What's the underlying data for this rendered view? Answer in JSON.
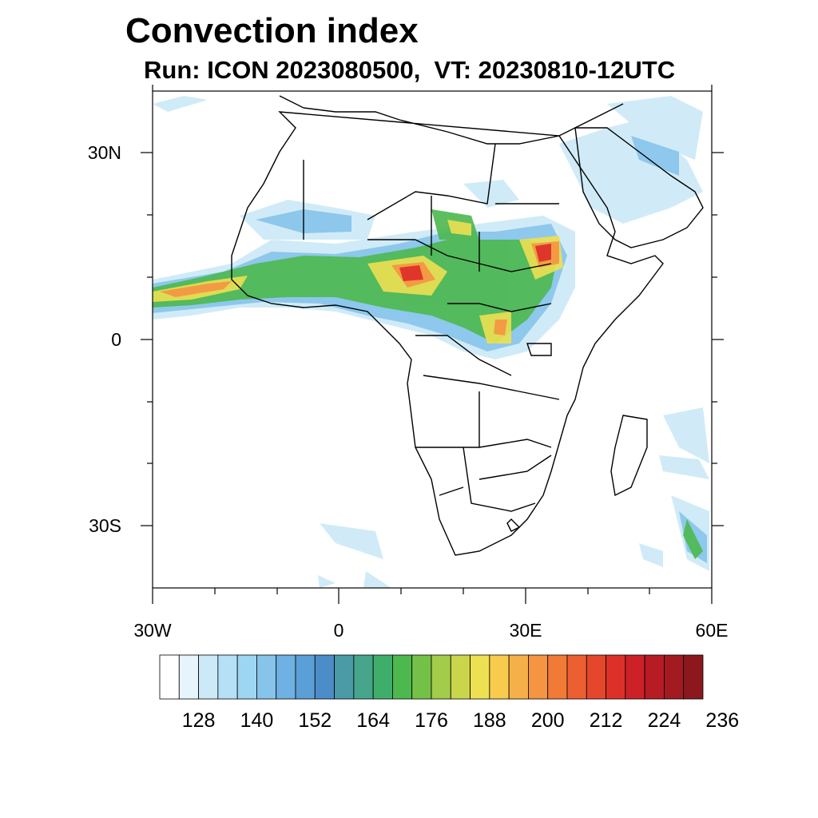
{
  "title": "Convection index",
  "subtitle": "Run: ICON 2023080500,  VT: 20230810-12UTC",
  "axes": {
    "lat_ticks": [
      "30N",
      "0",
      "30S"
    ],
    "lon_ticks": [
      "30W",
      "0",
      "30E",
      "60E"
    ],
    "lon_range": [
      -30,
      60
    ],
    "lat_range": [
      -40,
      40
    ]
  },
  "colorbar": {
    "labels": [
      "128",
      "140",
      "152",
      "164",
      "176",
      "188",
      "200",
      "212",
      "224",
      "236"
    ],
    "colors": [
      "#ffffff",
      "#e6f4fb",
      "#cbe9f7",
      "#b5e0f5",
      "#9dd6f3",
      "#86c4ea",
      "#6eb1e2",
      "#5a9fd6",
      "#4c8cc8",
      "#4a9ba6",
      "#46a58a",
      "#3fae6a",
      "#4cb84e",
      "#74c148",
      "#a2cc4a",
      "#cbd54c",
      "#ede052",
      "#f8cb4e",
      "#f6b04a",
      "#f59441",
      "#f27a37",
      "#ec5f30",
      "#e4472b",
      "#dc3029",
      "#cb2127",
      "#b71c24",
      "#a31a21",
      "#8c181d"
    ]
  },
  "icons": {
    "map": "africa-map"
  }
}
